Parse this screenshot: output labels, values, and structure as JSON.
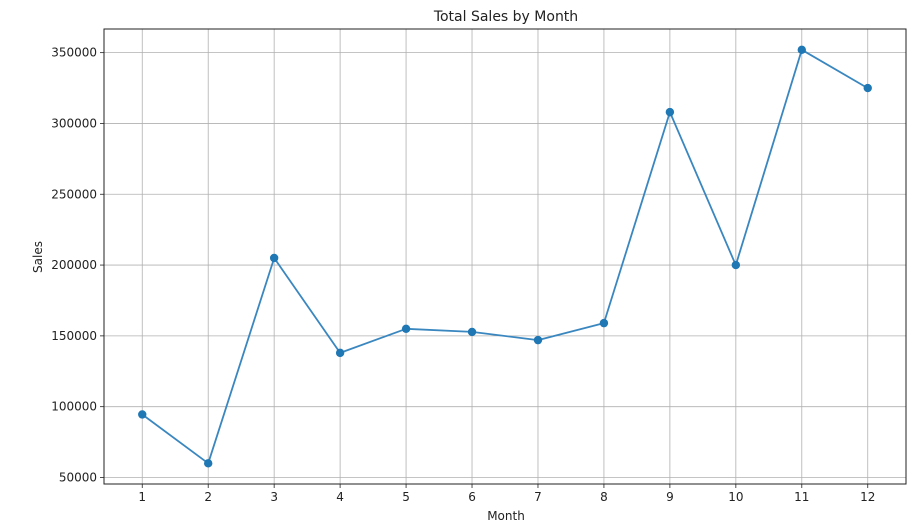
{
  "chart_data": {
    "type": "line",
    "title": "Total Sales by Month",
    "xlabel": "Month",
    "ylabel": "Sales",
    "x": [
      1,
      2,
      3,
      4,
      5,
      6,
      7,
      8,
      9,
      10,
      11,
      12
    ],
    "series": [
      {
        "values": [
          94500,
          60000,
          205000,
          138000,
          155000,
          152800,
          147000,
          159000,
          308000,
          200000,
          352000,
          325000
        ]
      }
    ],
    "xticks": [
      "1",
      "2",
      "3",
      "4",
      "5",
      "6",
      "7",
      "8",
      "9",
      "10",
      "11",
      "12"
    ],
    "yticks": [
      50000,
      100000,
      150000,
      200000,
      250000,
      300000,
      350000
    ],
    "ytick_labels": [
      "50000",
      "100000",
      "150000",
      "200000",
      "250000",
      "300000",
      "350000"
    ],
    "xlim": [
      0.42,
      12.58
    ],
    "ylim": [
      45400,
      366700
    ],
    "grid": true,
    "line_color": "#3a87c0",
    "marker_color": "#1f77b4"
  }
}
